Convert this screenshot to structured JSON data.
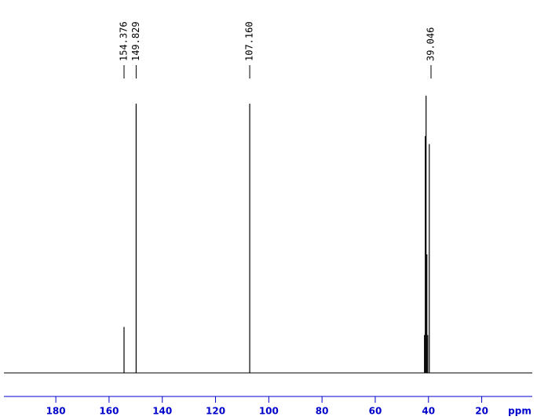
{
  "chart_data": {
    "type": "spectrum",
    "x_label": "ppm",
    "xlim": [
      199.5,
      1
    ],
    "ylim": [
      -3,
      105
    ],
    "xticks": [
      180,
      160,
      140,
      120,
      100,
      80,
      60,
      40,
      20
    ],
    "color": "#000000",
    "axis_color": "#0000cc",
    "x": [
      154.376,
      149.829,
      107.16,
      41.5,
      41.2,
      40.9,
      40.6,
      40.3,
      39.7
    ],
    "values": [
      17,
      100,
      100,
      14,
      88,
      103,
      44,
      14,
      85
    ],
    "peak_labels": [
      {
        "value": 154.376,
        "label": "154.376"
      },
      {
        "value": 149.829,
        "label": "149.829"
      },
      {
        "value": 107.16,
        "label": "107.160"
      },
      {
        "value": 39.046,
        "label": "39.046"
      }
    ]
  }
}
